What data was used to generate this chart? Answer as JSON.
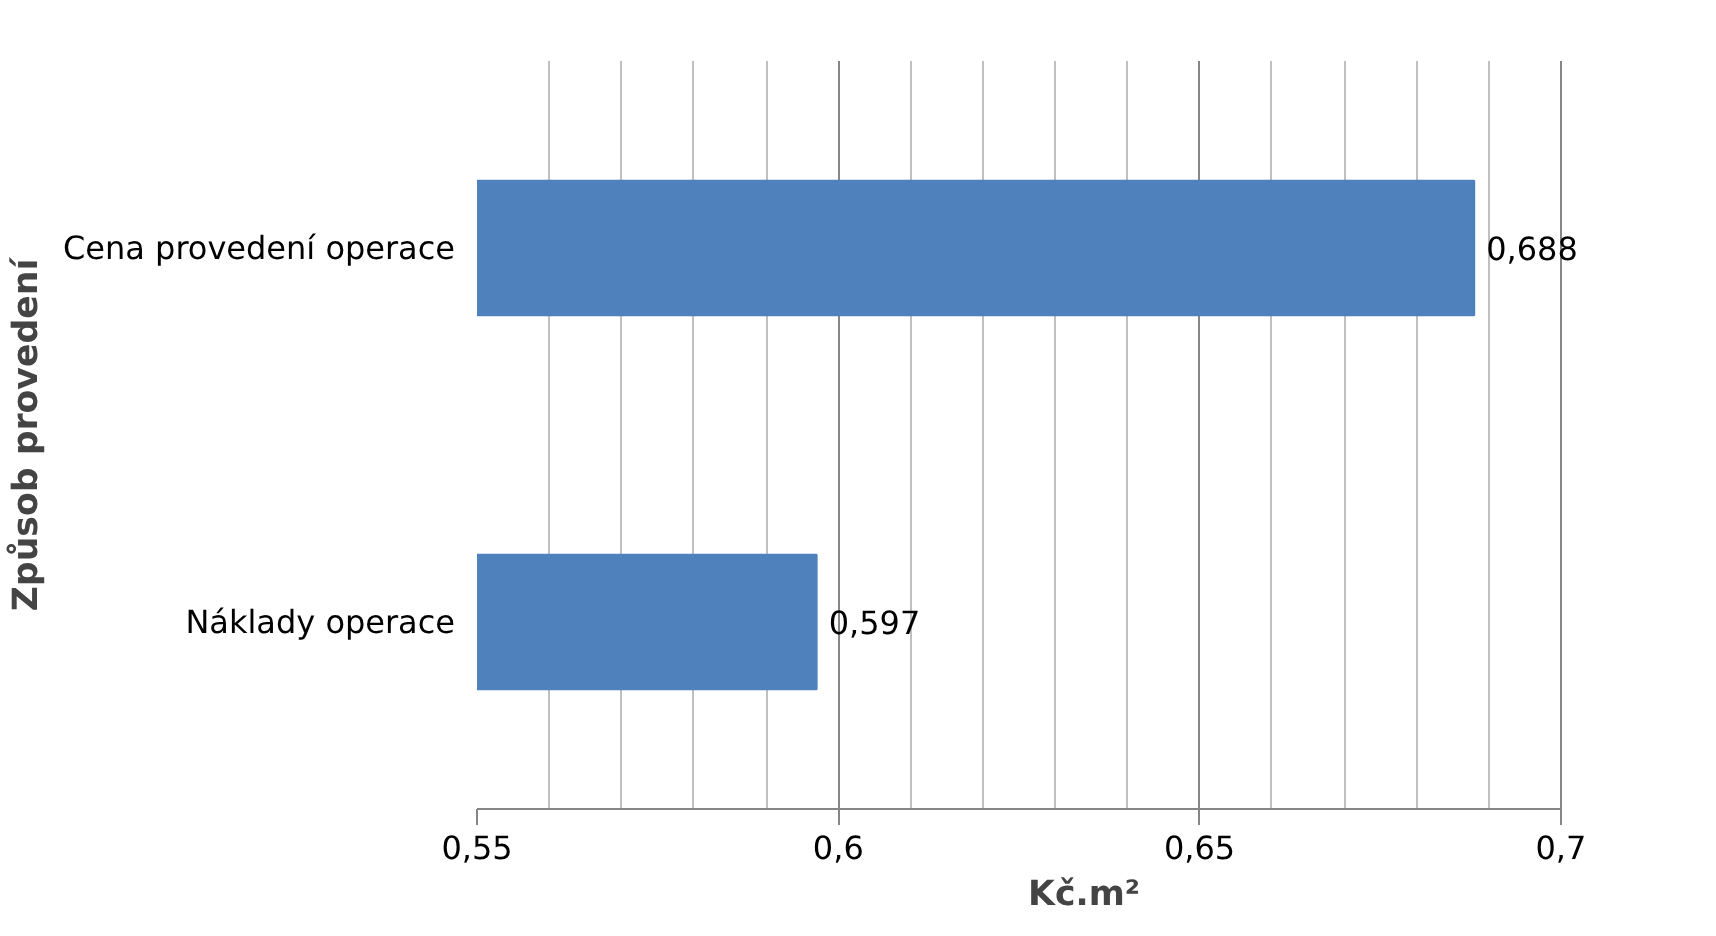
{
  "chart_data": {
    "type": "bar",
    "orientation": "horizontal",
    "xlabel": "Kč.m²",
    "ylabel": "Způsob provedení",
    "categories": [
      "Cena provedení operace",
      "Náklady operace"
    ],
    "series": [
      {
        "color": "#4f81bd",
        "values": [
          0.688,
          0.597
        ],
        "value_labels": [
          "0,688",
          "0,597"
        ]
      }
    ],
    "xlim": [
      0.55,
      0.7
    ],
    "xticks": [
      {
        "value": 0.55,
        "label": "0,55"
      },
      {
        "value": 0.6,
        "label": "0,6"
      },
      {
        "value": 0.65,
        "label": "0,65"
      },
      {
        "value": 0.7,
        "label": "0,7"
      }
    ],
    "grid": "x"
  }
}
